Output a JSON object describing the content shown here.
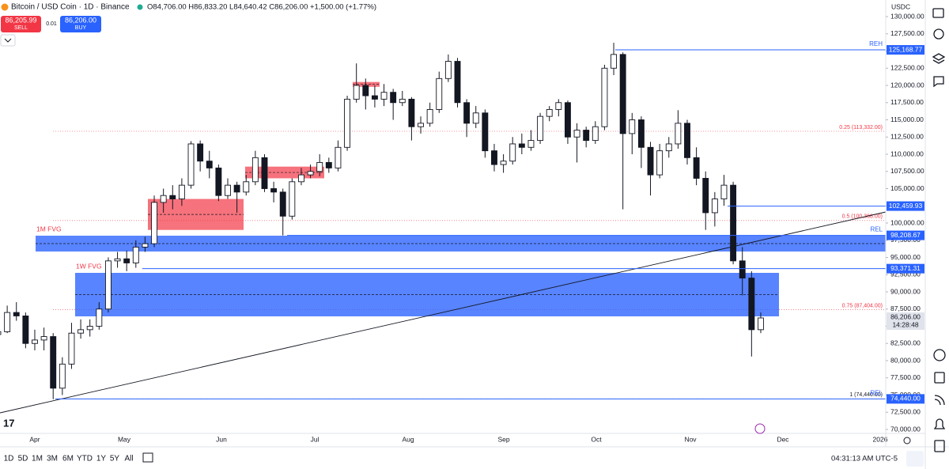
{
  "header": {
    "symbol": "Bitcoin / USD Coin · 1D · Binance",
    "ohlc": "O84,706.00 H86,833.20 L84,640.42 C86,206.00 +1,500.00 (+1.77%)"
  },
  "trade": {
    "sell_price": "86,205.99",
    "sell": "SELL",
    "spread": "0.01",
    "buy_price": "86,206.00",
    "buy": "BUY"
  },
  "chart": {
    "currency": "USDC",
    "ylim": [
      70000,
      130000
    ],
    "yticks": [
      {
        "value": 70000,
        "label": "70,000.00"
      },
      {
        "value": 72500,
        "label": "72,500.00"
      },
      {
        "value": 75000,
        "label": "75,000.00"
      },
      {
        "value": 77500,
        "label": "77,500.00"
      },
      {
        "value": 80000,
        "label": "80,000.00"
      },
      {
        "value": 82500,
        "label": "82,500.00"
      },
      {
        "value": 85000,
        "label": "85,000.00"
      },
      {
        "value": 87500,
        "label": "87,500.00"
      },
      {
        "value": 90000,
        "label": "90,000.00"
      },
      {
        "value": 92500,
        "label": "92,500.00"
      },
      {
        "value": 95000,
        "label": "95,000.00"
      },
      {
        "value": 97500,
        "label": "97,500.00"
      },
      {
        "value": 100000,
        "label": "100,000.00"
      },
      {
        "value": 102500,
        "label": "102,500.00"
      },
      {
        "value": 105000,
        "label": "105,000.00"
      },
      {
        "value": 107500,
        "label": "107,500.00"
      },
      {
        "value": 110000,
        "label": "110,000.00"
      },
      {
        "value": 112500,
        "label": "112,500.00"
      },
      {
        "value": 115000,
        "label": "115,000.00"
      },
      {
        "value": 117500,
        "label": "117,500.00"
      },
      {
        "value": 120000,
        "label": "120,000.00"
      },
      {
        "value": 122500,
        "label": "122,500.00"
      },
      {
        "value": 125000,
        "label": "125,000.00"
      },
      {
        "value": 127500,
        "label": "127,500.00"
      },
      {
        "value": 130000,
        "label": "130,000.00"
      }
    ],
    "time_labels": [
      "Apr",
      "May",
      "Jun",
      "Jul",
      "Aug",
      "Sep",
      "Oct",
      "Nov",
      "Dec",
      "2026"
    ],
    "candles": [
      [
        83800,
        84900,
        83000,
        84200
      ],
      [
        84200,
        88000,
        84000,
        87000
      ],
      [
        87000,
        88500,
        85800,
        86500
      ],
      [
        86500,
        87000,
        81800,
        82500
      ],
      [
        82500,
        84500,
        81500,
        83000
      ],
      [
        83000,
        84800,
        81500,
        83500
      ],
      [
        83500,
        84000,
        74440,
        76000
      ],
      [
        76000,
        80500,
        75000,
        79500
      ],
      [
        79500,
        85500,
        78800,
        84000
      ],
      [
        84000,
        86000,
        83200,
        84500
      ],
      [
        84500,
        86000,
        83500,
        85000
      ],
      [
        85000,
        88500,
        84500,
        87500
      ],
      [
        87500,
        95000,
        87000,
        94500
      ],
      [
        94500,
        95800,
        93500,
        94800
      ],
      [
        94800,
        96000,
        93000,
        94200
      ],
      [
        94200,
        97500,
        93500,
        96500
      ],
      [
        96500,
        98000,
        95800,
        97000
      ],
      [
        97000,
        104000,
        96500,
        103000
      ],
      [
        103000,
        105000,
        101500,
        104000
      ],
      [
        104000,
        105500,
        102000,
        103500
      ],
      [
        103500,
        106500,
        102500,
        105500
      ],
      [
        105500,
        111900,
        105000,
        111500
      ],
      [
        111500,
        112000,
        107500,
        109000
      ],
      [
        109000,
        110500,
        106500,
        108000
      ],
      [
        108000,
        108500,
        103200,
        104000
      ],
      [
        104000,
        106500,
        103500,
        105500
      ],
      [
        105500,
        106000,
        101500,
        104500
      ],
      [
        104500,
        107000,
        104000,
        106000
      ],
      [
        106000,
        110500,
        105500,
        109500
      ],
      [
        109500,
        110000,
        104500,
        105000
      ],
      [
        105000,
        106000,
        103000,
        104500
      ],
      [
        104500,
        105000,
        98200,
        101000
      ],
      [
        101000,
        106500,
        100500,
        106000
      ],
      [
        106000,
        108000,
        105500,
        107000
      ],
      [
        107000,
        108500,
        106500,
        107500
      ],
      [
        107500,
        110000,
        106800,
        108800
      ],
      [
        108800,
        109500,
        107300,
        108000
      ],
      [
        108000,
        112000,
        107500,
        111000
      ],
      [
        111000,
        118500,
        110500,
        118000
      ],
      [
        118000,
        123200,
        117500,
        120000
      ],
      [
        120000,
        121000,
        116500,
        118500
      ],
      [
        118500,
        120000,
        116800,
        118000
      ],
      [
        118000,
        120200,
        117000,
        119000
      ],
      [
        119000,
        119500,
        115000,
        117500
      ],
      [
        117500,
        119200,
        117000,
        118000
      ],
      [
        118000,
        118300,
        112000,
        114000
      ],
      [
        114000,
        115500,
        113000,
        114500
      ],
      [
        114500,
        117500,
        114000,
        116500
      ],
      [
        116500,
        122000,
        116000,
        121000
      ],
      [
        121000,
        124500,
        120500,
        123500
      ],
      [
        123500,
        124000,
        116800,
        117500
      ],
      [
        117500,
        118000,
        112500,
        114500
      ],
      [
        114500,
        117000,
        113800,
        116000
      ],
      [
        116000,
        116500,
        109500,
        110500
      ],
      [
        110500,
        111500,
        107500,
        108500
      ],
      [
        108500,
        110000,
        107300,
        109000
      ],
      [
        109000,
        112500,
        108500,
        111500
      ],
      [
        111500,
        113000,
        110000,
        111000
      ],
      [
        111000,
        113500,
        110500,
        112000
      ],
      [
        112000,
        116000,
        111500,
        115500
      ],
      [
        115500,
        117000,
        114800,
        116500
      ],
      [
        116500,
        118000,
        115500,
        117500
      ],
      [
        117500,
        117800,
        111500,
        112500
      ],
      [
        112500,
        114500,
        108800,
        113500
      ],
      [
        113500,
        114000,
        111000,
        112000
      ],
      [
        112000,
        114800,
        111500,
        114000
      ],
      [
        114000,
        123000,
        113500,
        122500
      ],
      [
        122500,
        126200,
        121500,
        124500
      ],
      [
        124500,
        124800,
        102000,
        113000
      ],
      [
        113000,
        116000,
        110000,
        115000
      ],
      [
        115000,
        115500,
        108000,
        111000
      ],
      [
        111000,
        111800,
        104000,
        107000
      ],
      [
        107000,
        111500,
        106500,
        110500
      ],
      [
        110500,
        112500,
        109500,
        111500
      ],
      [
        111500,
        116400,
        110800,
        114500
      ],
      [
        114500,
        115000,
        108500,
        109500
      ],
      [
        109500,
        111000,
        105500,
        106500
      ],
      [
        106500,
        107500,
        99000,
        101500
      ],
      [
        101500,
        104500,
        99500,
        103500
      ],
      [
        103500,
        107000,
        102500,
        105500
      ],
      [
        105500,
        106000,
        94000,
        94500
      ],
      [
        94500,
        96500,
        89500,
        92000
      ],
      [
        92000,
        93000,
        80600,
        84500
      ],
      [
        84500,
        87000,
        84000,
        86206
      ]
    ],
    "levels": [
      {
        "name": "REH",
        "value": 125168.77,
        "label": "125,168.77"
      },
      {
        "value": 102459.93,
        "label": "102,459.93"
      },
      {
        "name": "REL",
        "value": 98208.67,
        "label": "98,208.67"
      },
      {
        "value": 93371.31,
        "label": "93,371.31"
      },
      {
        "name": "REL",
        "value": 74440,
        "label": "74,440.00"
      }
    ],
    "fib": [
      {
        "value": 113332,
        "label": "0.25 (113,332.00)"
      },
      {
        "value": 100368,
        "label": "0.5 (100,368.00)"
      },
      {
        "value": 87404,
        "label": "0.75 (87,404.00)"
      },
      {
        "value": 74440,
        "label": "1 (74,440.00)"
      }
    ],
    "zones": [
      {
        "name": "1M FVG",
        "low": 95862,
        "high": 98161
      },
      {
        "name": "1W FVG",
        "low": 86437,
        "high": 92758
      }
    ],
    "order_blocks": [
      {
        "low": 99000,
        "high": 103500
      },
      {
        "low": 106500,
        "high": 108200
      },
      {
        "low": 119800,
        "high": 120500
      }
    ],
    "last_price": "86,206.00",
    "countdown": "14:28:48"
  },
  "toolbar": {
    "ranges": [
      "1D",
      "5D",
      "1M",
      "3M",
      "6M",
      "YTD",
      "1Y",
      "5Y",
      "All"
    ],
    "clock": "04:31:13 AM UTC-5"
  }
}
